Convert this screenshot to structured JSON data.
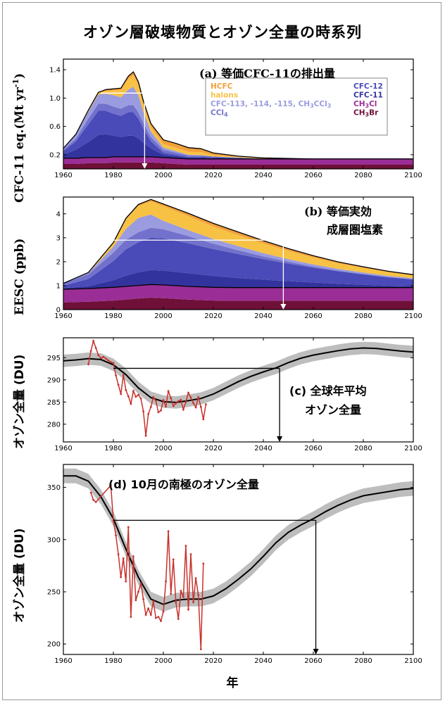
{
  "figure": {
    "title": "オゾン層破壊物質とオゾン全量の時系列",
    "xlabel": "年"
  },
  "colors": {
    "HCFC": "#f2a03c",
    "halons": "#f7c244",
    "CFC-113, -114, -115, CH3CCl3": "#9b9be0",
    "CCl4": "#7272cc",
    "CFC-12": "#4a4ab8",
    "CFC-11": "#33339e",
    "CH3Cl": "#9a2e96",
    "CH3Br": "#6e1038",
    "observed": "#c8312b",
    "model_band": "#bdbdbd",
    "model_mean": "#000000",
    "arrow": "#ffffff"
  },
  "chart_data": [
    {
      "id": "a",
      "type": "area",
      "title": "(a) 等価CFC-11の排出量",
      "ylabel": "CFC-11 eq.(Mt yr",
      "ylabel_sup": "-1",
      "ylabel_close": ")",
      "xlim": [
        1960,
        2100
      ],
      "ylim": [
        0,
        1.55
      ],
      "xticks": [
        "1960",
        "1980",
        "2000",
        "2020",
        "2040",
        "2060",
        "2080",
        "2100"
      ],
      "yticks": [
        "0.2",
        "0.6",
        "1.0",
        "1.4"
      ],
      "ytick_values": [
        0.2,
        0.6,
        1.0,
        1.4
      ],
      "x": [
        1960,
        1965,
        1970,
        1974,
        1977,
        1980,
        1983,
        1986,
        1988,
        1990,
        1992,
        1995,
        2000,
        2005,
        2010,
        2015,
        2020,
        2030,
        2040,
        2060,
        2080,
        2100
      ],
      "series": [
        {
          "name": "CH3Br",
          "values": [
            0.07,
            0.07,
            0.08,
            0.08,
            0.08,
            0.09,
            0.09,
            0.09,
            0.09,
            0.09,
            0.09,
            0.09,
            0.08,
            0.07,
            0.06,
            0.06,
            0.06,
            0.06,
            0.06,
            0.06,
            0.06,
            0.06
          ]
        },
        {
          "name": "CH3Cl",
          "values": [
            0.08,
            0.08,
            0.08,
            0.08,
            0.08,
            0.08,
            0.08,
            0.08,
            0.08,
            0.08,
            0.08,
            0.08,
            0.08,
            0.08,
            0.08,
            0.08,
            0.08,
            0.08,
            0.08,
            0.08,
            0.08,
            0.08
          ]
        },
        {
          "name": "CFC-11",
          "values": [
            0.05,
            0.12,
            0.22,
            0.32,
            0.33,
            0.3,
            0.28,
            0.3,
            0.3,
            0.26,
            0.2,
            0.12,
            0.04,
            0.03,
            0.02,
            0.02,
            0.015,
            0.01,
            0.005,
            0.0,
            0.0,
            0.0
          ]
        },
        {
          "name": "CFC-12",
          "values": [
            0.05,
            0.12,
            0.25,
            0.34,
            0.33,
            0.31,
            0.3,
            0.33,
            0.33,
            0.28,
            0.2,
            0.1,
            0.03,
            0.02,
            0.01,
            0.01,
            0.01,
            0.005,
            0.0,
            0.0,
            0.0,
            0.0
          ]
        },
        {
          "name": "CCl4",
          "values": [
            0.02,
            0.04,
            0.08,
            0.1,
            0.1,
            0.1,
            0.1,
            0.1,
            0.1,
            0.09,
            0.08,
            0.06,
            0.04,
            0.03,
            0.02,
            0.02,
            0.01,
            0.005,
            0.0,
            0.0,
            0.0,
            0.0
          ]
        },
        {
          "name": "CFC-113, -114, -115, CH3CCl3",
          "values": [
            0.02,
            0.05,
            0.1,
            0.13,
            0.14,
            0.16,
            0.16,
            0.22,
            0.26,
            0.24,
            0.16,
            0.08,
            0.03,
            0.02,
            0.01,
            0.005,
            0.0,
            0.0,
            0.0,
            0.0,
            0.0,
            0.0
          ]
        },
        {
          "name": "halons",
          "values": [
            0.0,
            0.005,
            0.01,
            0.02,
            0.04,
            0.07,
            0.1,
            0.15,
            0.16,
            0.14,
            0.1,
            0.06,
            0.05,
            0.05,
            0.04,
            0.04,
            0.02,
            0.01,
            0.01,
            0.0,
            0.0,
            0.0
          ]
        },
        {
          "name": "HCFC",
          "values": [
            0.0,
            0.005,
            0.01,
            0.01,
            0.02,
            0.02,
            0.03,
            0.04,
            0.05,
            0.05,
            0.05,
            0.05,
            0.06,
            0.06,
            0.06,
            0.05,
            0.03,
            0.01,
            0.0,
            0.0,
            0.0,
            0.0
          ]
        }
      ],
      "legend": [
        {
          "name": "HCFC",
          "label": "HCFC",
          "column": 1
        },
        {
          "name": "halons",
          "label": "halons",
          "column": 1
        },
        {
          "name": "CFC-113, -114, -115, CH3CCl3",
          "label": "CFC-113, -114, -115, CH",
          "sub": "3",
          "tail": "CCl",
          "sub2": "3",
          "column": 1
        },
        {
          "name": "CCl4",
          "label": "CCl",
          "sub": "4",
          "column": 1
        },
        {
          "name": "CFC-12",
          "label": "CFC-12",
          "column": 2
        },
        {
          "name": "CFC-11",
          "label": "CFC-11",
          "column": 2
        },
        {
          "name": "CH3Cl",
          "label": "CH",
          "sub": "3",
          "tail": "Cl",
          "column": 2
        },
        {
          "name": "CH3Br",
          "label": "CH",
          "sub": "3",
          "tail": "Br",
          "column": 2
        }
      ],
      "annotation_lines": [
        {
          "x1": 1975,
          "y1": 1.07,
          "x2": 1992.5,
          "y2": 1.07
        },
        {
          "x1": 1992.5,
          "y1": 1.07,
          "x2": 1992.5,
          "y2": 0.0,
          "arrow": true
        }
      ]
    },
    {
      "id": "b",
      "type": "area",
      "title": "(b) 等価実効",
      "title2": "成層圏塩素",
      "ylabel": "EESC (ppb)",
      "xlim": [
        1960,
        2100
      ],
      "ylim": [
        0,
        4.7
      ],
      "xticks": [
        "1960",
        "1980",
        "2000",
        "2020",
        "2040",
        "2060",
        "2080",
        "2100"
      ],
      "yticks": [
        "0",
        "1",
        "2",
        "3",
        "4"
      ],
      "ytick_values": [
        0,
        1,
        2,
        3,
        4
      ],
      "x": [
        1960,
        1970,
        1980,
        1985,
        1990,
        1995,
        2000,
        2010,
        2020,
        2030,
        2040,
        2050,
        2060,
        2070,
        2080,
        2090,
        2100
      ],
      "series": [
        {
          "name": "CH3Br",
          "values": [
            0.3,
            0.33,
            0.38,
            0.42,
            0.46,
            0.5,
            0.48,
            0.42,
            0.38,
            0.37,
            0.37,
            0.37,
            0.37,
            0.37,
            0.37,
            0.37,
            0.37
          ]
        },
        {
          "name": "CH3Cl",
          "values": [
            0.55,
            0.55,
            0.55,
            0.55,
            0.55,
            0.55,
            0.55,
            0.55,
            0.55,
            0.55,
            0.55,
            0.55,
            0.55,
            0.55,
            0.55,
            0.55,
            0.55
          ]
        },
        {
          "name": "CFC-11",
          "values": [
            0.05,
            0.1,
            0.3,
            0.45,
            0.55,
            0.6,
            0.6,
            0.55,
            0.48,
            0.4,
            0.33,
            0.27,
            0.21,
            0.16,
            0.12,
            0.08,
            0.06
          ]
        },
        {
          "name": "CFC-12",
          "values": [
            0.1,
            0.3,
            0.8,
            1.1,
            1.25,
            1.35,
            1.35,
            1.25,
            1.12,
            1.0,
            0.86,
            0.73,
            0.62,
            0.52,
            0.43,
            0.35,
            0.28
          ]
        },
        {
          "name": "CCl4",
          "values": [
            0.1,
            0.2,
            0.35,
            0.4,
            0.42,
            0.42,
            0.38,
            0.3,
            0.22,
            0.16,
            0.11,
            0.08,
            0.05,
            0.03,
            0.02,
            0.01,
            0.01
          ]
        },
        {
          "name": "CFC-113, -114, -115, CH3CCl3",
          "values": [
            0.0,
            0.05,
            0.25,
            0.45,
            0.6,
            0.55,
            0.35,
            0.25,
            0.2,
            0.17,
            0.14,
            0.11,
            0.09,
            0.07,
            0.06,
            0.05,
            0.04
          ]
        },
        {
          "name": "halons",
          "values": [
            0.0,
            0.02,
            0.15,
            0.4,
            0.5,
            0.55,
            0.6,
            0.58,
            0.52,
            0.46,
            0.4,
            0.34,
            0.28,
            0.23,
            0.19,
            0.15,
            0.12
          ]
        },
        {
          "name": "HCFC",
          "values": [
            0.0,
            0.0,
            0.02,
            0.04,
            0.06,
            0.08,
            0.1,
            0.12,
            0.13,
            0.13,
            0.12,
            0.1,
            0.08,
            0.06,
            0.05,
            0.04,
            0.03
          ]
        }
      ],
      "annotation_lines": [
        {
          "x1": 1980,
          "y1": 2.9,
          "x2": 2048,
          "y2": 2.9
        },
        {
          "x1": 2048,
          "y1": 2.9,
          "x2": 2048,
          "y2": 0.0,
          "arrow": true
        }
      ]
    },
    {
      "id": "c",
      "type": "line",
      "title": "(c) 全球年平均",
      "title2": "オゾン全量",
      "ylabel": "オゾン全量 (DU)",
      "xlim": [
        1960,
        2100
      ],
      "ylim": [
        276,
        299.5
      ],
      "xticks": [
        "1960",
        "1980",
        "2000",
        "2020",
        "2040",
        "2060",
        "2080",
        "2100"
      ],
      "yticks": [
        "280",
        "285",
        "290",
        "295"
      ],
      "ytick_values": [
        280,
        285,
        290,
        295
      ],
      "model_x": [
        1960,
        1965,
        1970,
        1975,
        1980,
        1985,
        1990,
        1995,
        2000,
        2005,
        2010,
        2015,
        2020,
        2025,
        2030,
        2035,
        2040,
        2045,
        2050,
        2055,
        2060,
        2065,
        2070,
        2075,
        2080,
        2085,
        2090,
        2095,
        2100
      ],
      "model_mean": [
        294.3,
        294.5,
        294.8,
        294.6,
        293.4,
        291.2,
        288.2,
        286,
        285.1,
        284.9,
        285.3,
        285.8,
        286.8,
        288.2,
        289.6,
        290.8,
        291.8,
        292.7,
        293.9,
        294.9,
        295.6,
        296.1,
        296.6,
        297.0,
        297.2,
        297.1,
        296.8,
        296.5,
        296.3
      ],
      "model_spread": 1.4,
      "observed": {
        "x": [
          1970,
          1971,
          1972,
          1973,
          1974,
          1975,
          1976,
          1977,
          1978,
          1979,
          1980,
          1981,
          1982,
          1983,
          1984,
          1985,
          1986,
          1987,
          1988,
          1989,
          1990,
          1991,
          1992,
          1993,
          1994,
          1995,
          1996,
          1997,
          1998,
          1999,
          2000,
          2001,
          2002,
          2003,
          2004,
          2005,
          2006,
          2007,
          2008,
          2009,
          2010,
          2011,
          2012,
          2013,
          2014,
          2015,
          2016,
          2017
        ],
        "y": [
          293.5,
          296.5,
          298.8,
          297.2,
          295.6,
          294.9,
          295.2,
          294.8,
          294.4,
          294.0,
          293.8,
          291.0,
          288.9,
          286.8,
          291.1,
          287.7,
          286.3,
          284.6,
          287.5,
          286.2,
          286.6,
          285.8,
          282.9,
          277.4,
          282.3,
          283.9,
          286.1,
          285.3,
          282.7,
          283.1,
          285.4,
          284.0,
          287.5,
          285.9,
          284.1,
          284.7,
          285.2,
          285.5,
          283.3,
          285.0,
          287.1,
          286.0,
          284.8,
          283.8,
          286.1,
          283.9,
          281.1,
          284.5
        ]
      },
      "annotation_lines": [
        {
          "x1": 1980,
          "y1": 292.6,
          "x2": 2046.5,
          "y2": 292.6
        },
        {
          "x1": 2046.5,
          "y1": 292.6,
          "x2": 2046.5,
          "y2": 276,
          "arrow": true
        }
      ]
    },
    {
      "id": "d",
      "type": "line",
      "title": "(d) 10月の南極のオゾン全量",
      "ylabel": "オゾン全量 (DU)",
      "xlim": [
        1960,
        2100
      ],
      "ylim": [
        190,
        372
      ],
      "xticks": [
        "1960",
        "1980",
        "2000",
        "2020",
        "2040",
        "2060",
        "2080",
        "2100"
      ],
      "yticks": [
        "200",
        "250",
        "300",
        "350"
      ],
      "ytick_values": [
        200,
        250,
        300,
        350
      ],
      "model_x": [
        1960,
        1965,
        1970,
        1975,
        1980,
        1985,
        1990,
        1995,
        2000,
        2005,
        2010,
        2015,
        2020,
        2025,
        2030,
        2035,
        2040,
        2045,
        2050,
        2055,
        2060,
        2065,
        2070,
        2075,
        2080,
        2085,
        2090,
        2095,
        2100
      ],
      "model_mean": [
        361,
        361,
        356,
        341,
        320,
        291,
        264,
        243,
        238,
        242,
        243,
        243,
        246,
        253,
        262,
        272,
        284,
        297,
        307,
        314,
        320,
        327,
        333,
        338,
        342,
        344,
        346,
        348,
        349
      ],
      "model_spread": 7,
      "observed": {
        "x": [
          1971,
          1972,
          1973,
          1979,
          1980,
          1981,
          1982,
          1983,
          1984,
          1985,
          1986,
          1987,
          1988,
          1989,
          1990,
          1991,
          1992,
          1993,
          1994,
          1995,
          1996,
          1997,
          1998,
          1999,
          2000,
          2001,
          2002,
          2003,
          2004,
          2005,
          2006,
          2007,
          2008,
          2009,
          2010,
          2011,
          2012,
          2013,
          2014,
          2015,
          2016
        ],
        "y": [
          345,
          338,
          336,
          352,
          318,
          304,
          286,
          264,
          282,
          260,
          312,
          226,
          284,
          242,
          250,
          258,
          243,
          228,
          234,
          228,
          241,
          225,
          226,
          222,
          231,
          260,
          308,
          248,
          281,
          240,
          224,
          251,
          245,
          294,
          233,
          286,
          240,
          263,
          247,
          195,
          277
        ]
      },
      "annotation_lines": [
        {
          "x1": 1980,
          "y1": 318.5,
          "x2": 2061,
          "y2": 318.5
        },
        {
          "x1": 2061,
          "y1": 318.5,
          "x2": 2061,
          "y2": 190,
          "arrow": true
        }
      ]
    }
  ]
}
